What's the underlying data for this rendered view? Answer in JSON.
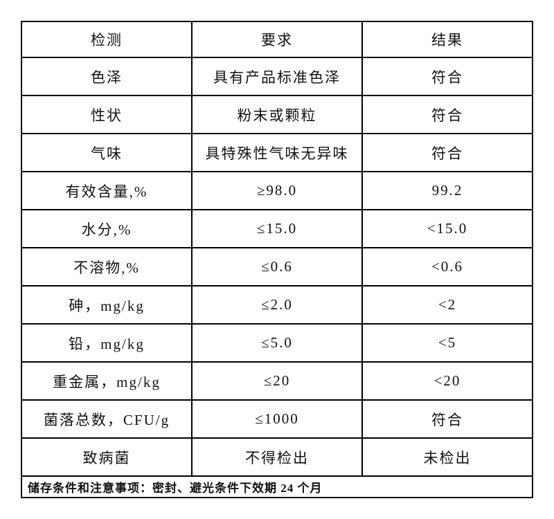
{
  "colors": {
    "background": "#ffffff",
    "border": "#000000",
    "text": "#111111"
  },
  "table": {
    "columns": [
      "检测",
      "要求",
      "结果"
    ],
    "rows": [
      [
        "色泽",
        "具有产品标准色泽",
        "符合"
      ],
      [
        "性状",
        "粉末或颗粒",
        "符合"
      ],
      [
        "气味",
        "具特殊性气味无异味",
        "符合"
      ],
      [
        "有效含量,%",
        "≥98.0",
        "99.2"
      ],
      [
        "水分,%",
        "≤15.0",
        "<15.0"
      ],
      [
        "不溶物,%",
        "≤0.6",
        "<0.6"
      ],
      [
        "砷，mg/kg",
        "≤2.0",
        "<2"
      ],
      [
        "铅，mg/kg",
        "≤5.0",
        "<5"
      ],
      [
        "重金属，mg/kg",
        "≤20",
        "<20"
      ],
      [
        "菌落总数，CFU/g",
        "≤1000",
        "符合"
      ],
      [
        "致病菌",
        "不得检出",
        "未检出"
      ]
    ],
    "footer": "储存条件和注意事项：密封、避光条件下效期 24 个月"
  }
}
